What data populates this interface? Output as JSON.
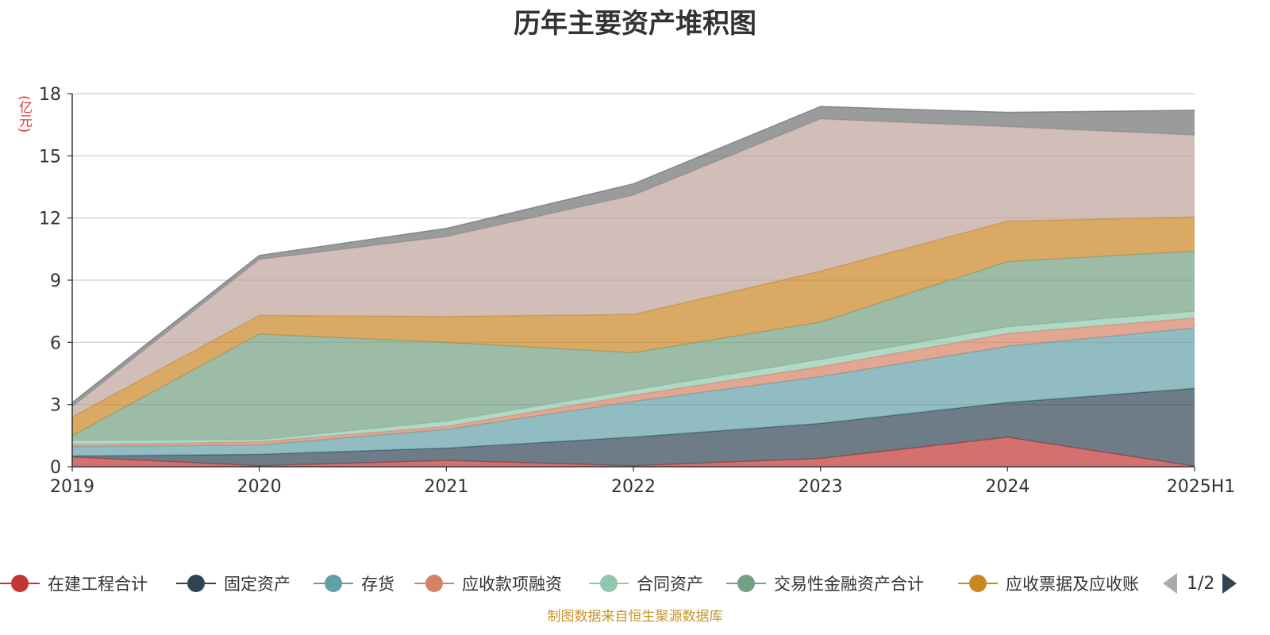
{
  "chart_data": {
    "type": "area",
    "stacked": true,
    "title": "历年主要资产堆积图",
    "unit_label": "(亿元)",
    "categories": [
      "2019",
      "2020",
      "2021",
      "2022",
      "2023",
      "2024",
      "2025H1"
    ],
    "ylim": [
      0,
      18
    ],
    "yticks": [
      0,
      3,
      6,
      9,
      12,
      15,
      18
    ],
    "grid": true,
    "series": [
      {
        "name": "在建工程合计",
        "color": "#c23531",
        "values": [
          0.47,
          0.05,
          0.3,
          0.05,
          0.4,
          1.42,
          0.03
        ]
      },
      {
        "name": "固定资产",
        "color": "#2f4554",
        "values": [
          0.05,
          0.55,
          0.6,
          1.38,
          1.69,
          1.68,
          3.75
        ]
      },
      {
        "name": "存货",
        "color": "#61a0a8",
        "values": [
          0.45,
          0.45,
          0.9,
          1.72,
          2.26,
          2.71,
          2.92
        ]
      },
      {
        "name": "应收款项融资",
        "color": "#d48265",
        "values": [
          0.1,
          0.15,
          0.15,
          0.3,
          0.48,
          0.62,
          0.48
        ]
      },
      {
        "name": "合同资产",
        "color": "#91c7ae",
        "values": [
          0.2,
          0.1,
          0.25,
          0.25,
          0.35,
          0.32,
          0.32
        ]
      },
      {
        "name": "交易性金融资产合计",
        "color": "#749f83",
        "values": [
          0.23,
          5.1,
          3.8,
          1.8,
          1.8,
          3.15,
          2.9
        ]
      },
      {
        "name": "应收票据及应收账",
        "color": "#ca8622",
        "values": [
          0.9,
          0.9,
          1.25,
          1.85,
          2.45,
          1.95,
          1.65
        ]
      },
      {
        "name": "",
        "color": "#bda29a",
        "values": [
          0.5,
          2.7,
          3.85,
          5.75,
          7.35,
          4.55,
          3.95
        ]
      },
      {
        "name": "",
        "color": "#6e7074",
        "values": [
          0.2,
          0.2,
          0.4,
          0.55,
          0.6,
          0.7,
          1.2
        ]
      }
    ]
  },
  "legend": {
    "visible_items": [
      "在建工程合计",
      "固定资产",
      "存货",
      "应收款项融资",
      "合同资产",
      "交易性金融资产合计",
      "应收票据及应收账"
    ],
    "pager_text": "1/2"
  },
  "source_note": "制图数据来自恒生聚源数据库"
}
